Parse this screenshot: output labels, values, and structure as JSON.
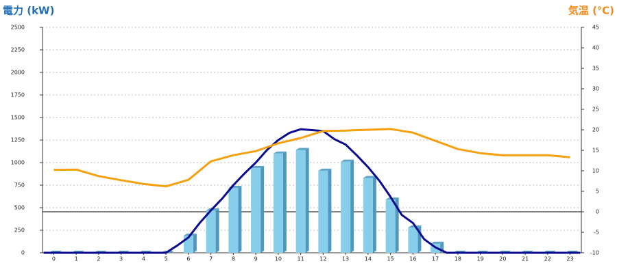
{
  "chart_data": {
    "type": "bar",
    "y_title": "電力 (kW)",
    "y2_title": "気温 (℃)",
    "categories": [
      "0",
      "1",
      "2",
      "3",
      "4",
      "5",
      "6",
      "7",
      "8",
      "9",
      "10",
      "11",
      "12",
      "13",
      "14",
      "15",
      "16",
      "17",
      "18",
      "19",
      "20",
      "21",
      "22",
      "23"
    ],
    "ylim": [
      0,
      2500
    ],
    "yticks": [
      0,
      250,
      500,
      750,
      1000,
      1250,
      1500,
      1750,
      2000,
      2250,
      2500
    ],
    "y2lim": [
      -10,
      45
    ],
    "y2ticks": [
      -10,
      -5,
      0,
      5,
      10,
      15,
      20,
      25,
      30,
      35,
      40,
      45
    ],
    "y2_baseline": 0,
    "grid": true,
    "series": [
      {
        "type": "bar",
        "color": "#87ceeb",
        "values": [
          0,
          0,
          0,
          0,
          0,
          0,
          190,
          470,
          720,
          940,
          1100,
          1140,
          910,
          1010,
          830,
          590,
          280,
          100,
          0,
          0,
          0,
          0,
          0,
          0
        ]
      },
      {
        "type": "line",
        "color": "#0a0a8c",
        "x": [
          -0.45,
          1,
          2,
          3,
          4,
          5,
          5.5,
          6,
          6.5,
          7,
          7.5,
          8,
          8.5,
          9,
          9.5,
          10,
          10.5,
          11,
          11.5,
          12,
          12.5,
          13,
          13.5,
          14,
          14.5,
          15,
          15.5,
          16,
          16.5,
          17,
          17.5,
          18,
          19,
          20,
          21,
          22,
          23,
          23.45
        ],
        "values": [
          0,
          0,
          0,
          0,
          0,
          0,
          80,
          170,
          330,
          470,
          600,
          750,
          880,
          1000,
          1140,
          1250,
          1330,
          1370,
          1360,
          1350,
          1260,
          1200,
          1080,
          950,
          800,
          620,
          420,
          330,
          150,
          60,
          0,
          0,
          0,
          0,
          0,
          0,
          0,
          0
        ]
      },
      {
        "type": "line",
        "axis": "y2",
        "color": "#f5a00f",
        "values": [
          10.2,
          10.3,
          8.7,
          7.7,
          6.8,
          6.2,
          7.8,
          12.3,
          13.8,
          14.8,
          16.7,
          18,
          19.7,
          19.8,
          20,
          20.2,
          19.3,
          17.3,
          15.3,
          14.3,
          13.8,
          13.8,
          13.8,
          13.3
        ]
      }
    ]
  }
}
